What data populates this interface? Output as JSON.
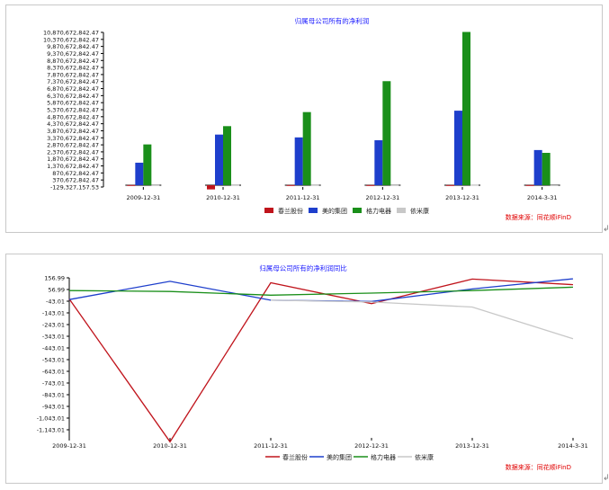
{
  "colors": {
    "chunlan": "#c0141c",
    "midea": "#1e3fcc",
    "gree": "#1a8f1a",
    "yimidi": "#c8c8c8",
    "title": "#1c1cff",
    "source": "#e00000"
  },
  "chart_data": [
    {
      "type": "bar",
      "title": "归属母公司所有的净利润",
      "categories": [
        "2009-12-31",
        "2010-12-31",
        "2011-12-31",
        "2012-12-31",
        "2013-12-31",
        "2014-3-31"
      ],
      "y_tick_labels": [
        "10,870,672,842.47",
        "10,370,672,842.47",
        "9,870,672,842.47",
        "9,370,672,842.47",
        "8,870,672,842.47",
        "8,370,672,842.47",
        "7,870,672,842.47",
        "7,370,672,842.47",
        "6,870,672,842.47",
        "6,370,672,842.47",
        "5,870,672,842.47",
        "5,370,672,842.47",
        "4,870,672,842.47",
        "4,370,672,842.47",
        "3,870,672,842.47",
        "3,370,672,842.47",
        "2,870,672,842.47",
        "2,370,672,842.47",
        "1,870,672,842.47",
        "1,370,672,842.47",
        "870,672,842.47",
        "370,672,842.47",
        "-129,327,157.53"
      ],
      "ylim": [
        -129327157.53,
        10870672842.47
      ],
      "series": [
        {
          "name": "春兰股份",
          "color_key": "chunlan",
          "values": [
            10000000,
            -300000000,
            10000000,
            10000000,
            10000000,
            10000000
          ]
        },
        {
          "name": "美的集团",
          "color_key": "midea",
          "values": [
            1600000000,
            3600000000,
            3400000000,
            3200000000,
            5300000000,
            2500000000
          ]
        },
        {
          "name": "格力电器",
          "color_key": "gree",
          "values": [
            2900000000,
            4200000000,
            5200000000,
            7400000000,
            10900000000,
            2300000000
          ]
        },
        {
          "name": "依米康",
          "color_key": "yimidi",
          "values": [
            15000000,
            20000000,
            20000000,
            15000000,
            25000000,
            5000000
          ]
        }
      ],
      "source_label": "数据来源：同花顺iFinD"
    },
    {
      "type": "line",
      "title": "归属母公司所有的净利润同比",
      "categories": [
        "2009-12-31",
        "2010-12-31",
        "2011-12-31",
        "2012-12-31",
        "2013-12-31",
        "2014-3-31"
      ],
      "y_tick_labels": [
        "156.99",
        "56.99",
        "-43.01",
        "-143.01",
        "-243.01",
        "-343.01",
        "-443.01",
        "-543.01",
        "-643.01",
        "-743.01",
        "-843.01",
        "-943.01",
        "-1,043.01",
        "-1,143.01"
      ],
      "ylim": [
        -1150,
        160
      ],
      "series": [
        {
          "name": "春兰股份",
          "color_key": "chunlan",
          "values": [
            -10,
            -1160,
            120,
            -48,
            150,
            105
          ]
        },
        {
          "name": "美的集团",
          "color_key": "midea",
          "values": [
            -15,
            132,
            -20,
            -30,
            70,
            152
          ]
        },
        {
          "name": "格力电器",
          "color_key": "gree",
          "values": [
            57,
            50,
            20,
            37,
            57,
            85
          ]
        },
        {
          "name": "依米康",
          "color_key": "yimidi",
          "values": [
            null,
            null,
            -20,
            -35,
            -75,
            -330
          ]
        }
      ],
      "source_label": "数据来源：同花顺iFinD"
    }
  ],
  "return_mark": "↲"
}
